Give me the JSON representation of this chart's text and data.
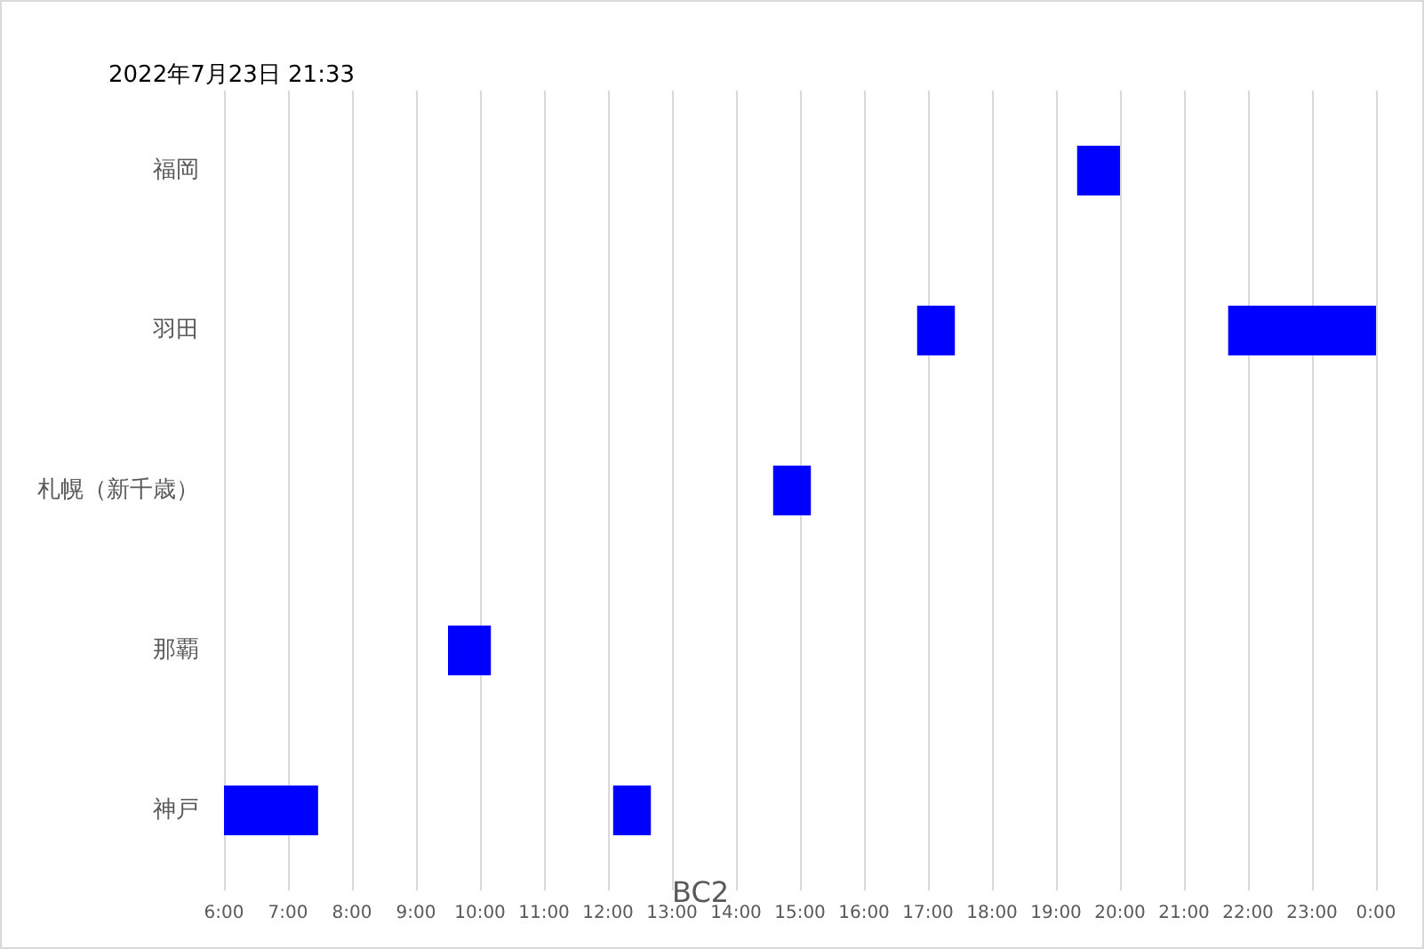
{
  "chart_data": {
    "type": "bar",
    "orientation": "horizontal",
    "title": "2022年7月23日 21:33",
    "xlabel": "BC2",
    "categories": [
      "福岡",
      "羽田",
      "札幌（新千歳）",
      "那覇",
      "神戸"
    ],
    "series": [
      {
        "color": "#0000ff",
        "base": [
          19.33,
          16.83,
          14.58,
          9.5,
          6
        ],
        "values": [
          0.67,
          0.59,
          0.59,
          0.67,
          1.47
        ]
      },
      {
        "color": "#0000ff",
        "base": [
          null,
          21.69,
          null,
          null,
          12.08
        ],
        "values": [
          null,
          2.31,
          null,
          null,
          0.59
        ]
      }
    ],
    "xlim": [
      6,
      24
    ],
    "xticks": [
      {
        "value": 6,
        "label": "6:00"
      },
      {
        "value": 7,
        "label": "7:00"
      },
      {
        "value": 8,
        "label": "8:00"
      },
      {
        "value": 9,
        "label": "9:00"
      },
      {
        "value": 10,
        "label": "10:00"
      },
      {
        "value": 11,
        "label": "11:00"
      },
      {
        "value": 12,
        "label": "12:00"
      },
      {
        "value": 13,
        "label": "13:00"
      },
      {
        "value": 14,
        "label": "14:00"
      },
      {
        "value": 15,
        "label": "15:00"
      },
      {
        "value": 16,
        "label": "16:00"
      },
      {
        "value": 17,
        "label": "17:00"
      },
      {
        "value": 18,
        "label": "18:00"
      },
      {
        "value": 19,
        "label": "19:00"
      },
      {
        "value": 20,
        "label": "20:00"
      },
      {
        "value": 21,
        "label": "21:00"
      },
      {
        "value": 22,
        "label": "22:00"
      },
      {
        "value": 23,
        "label": "23:00"
      },
      {
        "value": 24,
        "label": "0:00"
      }
    ],
    "grid": "x"
  }
}
